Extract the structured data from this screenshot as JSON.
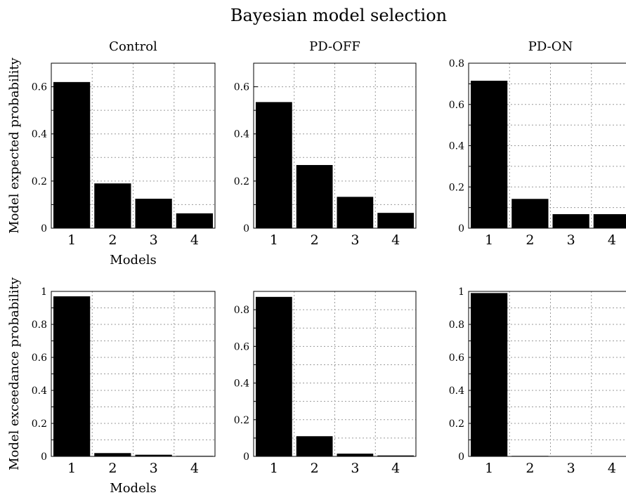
{
  "figure_title": "Bayesian model selection",
  "chart_data": [
    {
      "type": "bar",
      "row": "top",
      "title": "Control",
      "ylabel": "Model expected probability",
      "xlabel": "Models",
      "categories": [
        "1",
        "2",
        "3",
        "4"
      ],
      "values": [
        0.62,
        0.19,
        0.125,
        0.063
      ],
      "ylim": [
        0,
        0.7
      ],
      "yticks": [
        0,
        0.2,
        0.4,
        0.6
      ],
      "grid": true,
      "bar_color": "#000000"
    },
    {
      "type": "bar",
      "row": "top",
      "title": "PD-OFF",
      "ylabel": "",
      "xlabel": "",
      "categories": [
        "1",
        "2",
        "3",
        "4"
      ],
      "values": [
        0.535,
        0.268,
        0.133,
        0.065
      ],
      "ylim": [
        0,
        0.7
      ],
      "yticks": [
        0,
        0.2,
        0.4,
        0.6
      ],
      "grid": true,
      "bar_color": "#000000"
    },
    {
      "type": "bar",
      "row": "top",
      "title": "PD-ON",
      "ylabel": "",
      "xlabel": "",
      "categories": [
        "1",
        "2",
        "3",
        "4"
      ],
      "values": [
        0.715,
        0.142,
        0.068,
        0.068
      ],
      "ylim": [
        0,
        0.8
      ],
      "yticks": [
        0,
        0.2,
        0.4,
        0.6,
        0.8
      ],
      "grid": true,
      "bar_color": "#000000"
    },
    {
      "type": "bar",
      "row": "bottom",
      "title": "",
      "ylabel": "Model exceedance probability",
      "xlabel": "Models",
      "categories": [
        "1",
        "2",
        "3",
        "4"
      ],
      "values": [
        0.97,
        0.02,
        0.01,
        0.003
      ],
      "ylim": [
        0,
        1
      ],
      "yticks": [
        0,
        0.2,
        0.4,
        0.6,
        0.8,
        1
      ],
      "grid": true,
      "bar_color": "#000000"
    },
    {
      "type": "bar",
      "row": "bottom",
      "title": "",
      "ylabel": "",
      "xlabel": "",
      "categories": [
        "1",
        "2",
        "3",
        "4"
      ],
      "values": [
        0.87,
        0.11,
        0.015,
        0.005
      ],
      "ylim": [
        0,
        0.9
      ],
      "yticks": [
        0,
        0.2,
        0.4,
        0.6,
        0.8
      ],
      "grid": true,
      "bar_color": "#000000"
    },
    {
      "type": "bar",
      "row": "bottom",
      "title": "",
      "ylabel": "",
      "xlabel": "",
      "categories": [
        "1",
        "2",
        "3",
        "4"
      ],
      "values": [
        0.99,
        0.003,
        0.002,
        0.002
      ],
      "ylim": [
        0,
        1
      ],
      "yticks": [
        0,
        0.2,
        0.4,
        0.6,
        0.8,
        1
      ],
      "grid": true,
      "bar_color": "#000000"
    }
  ]
}
